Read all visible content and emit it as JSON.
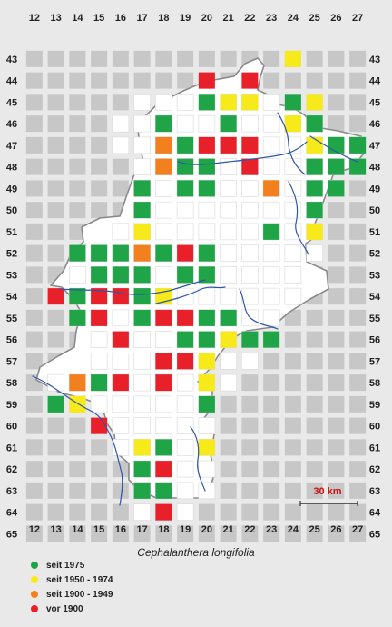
{
  "map": {
    "species": "Cephalanthera longifolia",
    "x_ticks": [
      "12",
      "13",
      "14",
      "15",
      "16",
      "17",
      "18",
      "19",
      "20",
      "21",
      "22",
      "23",
      "24",
      "25",
      "26",
      "27"
    ],
    "y_ticks": [
      "43",
      "44",
      "45",
      "46",
      "47",
      "48",
      "49",
      "50",
      "51",
      "52",
      "53",
      "54",
      "55",
      "56",
      "57",
      "58",
      "59",
      "60",
      "61",
      "62",
      "63",
      "64",
      "65"
    ],
    "scale": {
      "label": "30 km"
    },
    "colors": {
      "seit_1975": "#1fa548",
      "seit_1950_1974": "#f7ea1b",
      "seit_1900_1949": "#f3801f",
      "vor_1900": "#e8202a",
      "background": "#e9e9e9",
      "land": "#ffffff",
      "cell_out": "#c7c7c7",
      "river": "#2f56a6"
    },
    "region": [
      [
        "17",
        45
      ],
      [
        "18",
        45
      ],
      [
        "19",
        45
      ],
      [
        "20",
        45
      ],
      [
        "21",
        45
      ],
      [
        "22",
        45
      ],
      [
        "23",
        45
      ],
      [
        "24",
        45
      ],
      [
        "25",
        45
      ],
      [
        "16",
        46
      ],
      [
        "17",
        46
      ],
      [
        "18",
        46
      ],
      [
        "19",
        46
      ],
      [
        "20",
        46
      ],
      [
        "21",
        46
      ],
      [
        "22",
        46
      ],
      [
        "23",
        46
      ],
      [
        "24",
        46
      ],
      [
        "25",
        46
      ],
      [
        "16",
        47
      ],
      [
        "17",
        47
      ],
      [
        "18",
        47
      ],
      [
        "19",
        47
      ],
      [
        "20",
        47
      ],
      [
        "21",
        47
      ],
      [
        "22",
        47
      ],
      [
        "23",
        47
      ],
      [
        "24",
        47
      ],
      [
        "25",
        47
      ],
      [
        "26",
        47
      ],
      [
        "27",
        47
      ],
      [
        "17",
        48
      ],
      [
        "18",
        48
      ],
      [
        "19",
        48
      ],
      [
        "20",
        48
      ],
      [
        "21",
        48
      ],
      [
        "22",
        48
      ],
      [
        "23",
        48
      ],
      [
        "24",
        48
      ],
      [
        "25",
        48
      ],
      [
        "26",
        48
      ],
      [
        "27",
        48
      ],
      [
        "17",
        49
      ],
      [
        "18",
        49
      ],
      [
        "19",
        49
      ],
      [
        "20",
        49
      ],
      [
        "21",
        49
      ],
      [
        "22",
        49
      ],
      [
        "23",
        49
      ],
      [
        "24",
        49
      ],
      [
        "25",
        49
      ],
      [
        "26",
        49
      ],
      [
        "17",
        50
      ],
      [
        "18",
        50
      ],
      [
        "19",
        50
      ],
      [
        "20",
        50
      ],
      [
        "21",
        50
      ],
      [
        "22",
        50
      ],
      [
        "23",
        50
      ],
      [
        "24",
        50
      ],
      [
        "25",
        50
      ],
      [
        "16",
        51
      ],
      [
        "17",
        51
      ],
      [
        "18",
        51
      ],
      [
        "19",
        51
      ],
      [
        "20",
        51
      ],
      [
        "21",
        51
      ],
      [
        "22",
        51
      ],
      [
        "23",
        51
      ],
      [
        "24",
        51
      ],
      [
        "25",
        51
      ],
      [
        "14",
        52
      ],
      [
        "15",
        52
      ],
      [
        "16",
        52
      ],
      [
        "17",
        52
      ],
      [
        "18",
        52
      ],
      [
        "19",
        52
      ],
      [
        "20",
        52
      ],
      [
        "21",
        52
      ],
      [
        "22",
        52
      ],
      [
        "23",
        52
      ],
      [
        "24",
        52
      ],
      [
        "25",
        52
      ],
      [
        "14",
        53
      ],
      [
        "15",
        53
      ],
      [
        "16",
        53
      ],
      [
        "17",
        53
      ],
      [
        "18",
        53
      ],
      [
        "19",
        53
      ],
      [
        "20",
        53
      ],
      [
        "21",
        53
      ],
      [
        "22",
        53
      ],
      [
        "23",
        53
      ],
      [
        "24",
        53
      ],
      [
        "13",
        54
      ],
      [
        "14",
        54
      ],
      [
        "15",
        54
      ],
      [
        "16",
        54
      ],
      [
        "17",
        54
      ],
      [
        "18",
        54
      ],
      [
        "19",
        54
      ],
      [
        "20",
        54
      ],
      [
        "21",
        54
      ],
      [
        "22",
        54
      ],
      [
        "23",
        54
      ],
      [
        "24",
        54
      ],
      [
        "14",
        55
      ],
      [
        "15",
        55
      ],
      [
        "16",
        55
      ],
      [
        "17",
        55
      ],
      [
        "18",
        55
      ],
      [
        "19",
        55
      ],
      [
        "20",
        55
      ],
      [
        "21",
        55
      ],
      [
        "22",
        55
      ],
      [
        "23",
        55
      ],
      [
        "15",
        56
      ],
      [
        "16",
        56
      ],
      [
        "17",
        56
      ],
      [
        "18",
        56
      ],
      [
        "19",
        56
      ],
      [
        "20",
        56
      ],
      [
        "21",
        56
      ],
      [
        "22",
        56
      ],
      [
        "23",
        56
      ],
      [
        "15",
        57
      ],
      [
        "16",
        57
      ],
      [
        "17",
        57
      ],
      [
        "18",
        57
      ],
      [
        "19",
        57
      ],
      [
        "20",
        57
      ],
      [
        "21",
        57
      ],
      [
        "22",
        57
      ],
      [
        "13",
        58
      ],
      [
        "14",
        58
      ],
      [
        "15",
        58
      ],
      [
        "16",
        58
      ],
      [
        "17",
        58
      ],
      [
        "18",
        58
      ],
      [
        "19",
        58
      ],
      [
        "20",
        58
      ],
      [
        "21",
        58
      ],
      [
        "13",
        59
      ],
      [
        "14",
        59
      ],
      [
        "15",
        59
      ],
      [
        "16",
        59
      ],
      [
        "17",
        59
      ],
      [
        "18",
        59
      ],
      [
        "19",
        59
      ],
      [
        "20",
        59
      ],
      [
        "15",
        60
      ],
      [
        "16",
        60
      ],
      [
        "17",
        60
      ],
      [
        "18",
        60
      ],
      [
        "19",
        60
      ],
      [
        "20",
        60
      ],
      [
        "16",
        61
      ],
      [
        "17",
        61
      ],
      [
        "18",
        61
      ],
      [
        "19",
        61
      ],
      [
        "20",
        61
      ],
      [
        "17",
        62
      ],
      [
        "18",
        62
      ],
      [
        "19",
        62
      ],
      [
        "20",
        62
      ],
      [
        "17",
        63
      ],
      [
        "18",
        63
      ],
      [
        "19",
        63
      ],
      [
        "20",
        63
      ],
      [
        "17",
        64
      ],
      [
        "18",
        64
      ],
      [
        "19",
        64
      ]
    ],
    "records": [
      [
        "24",
        43,
        "seit_1950_1974"
      ],
      [
        "20",
        44,
        "vor_1900"
      ],
      [
        "22",
        44,
        "vor_1900"
      ],
      [
        "20",
        45,
        "seit_1975"
      ],
      [
        "21",
        45,
        "seit_1950_1974"
      ],
      [
        "22",
        45,
        "seit_1950_1974"
      ],
      [
        "24",
        45,
        "seit_1975"
      ],
      [
        "25",
        45,
        "seit_1950_1974"
      ],
      [
        "18",
        46,
        "seit_1975"
      ],
      [
        "21",
        46,
        "seit_1975"
      ],
      [
        "24",
        46,
        "seit_1950_1974"
      ],
      [
        "25",
        46,
        "seit_1975"
      ],
      [
        "18",
        47,
        "seit_1900_1949"
      ],
      [
        "19",
        47,
        "seit_1975"
      ],
      [
        "20",
        47,
        "vor_1900"
      ],
      [
        "21",
        47,
        "vor_1900"
      ],
      [
        "22",
        47,
        "vor_1900"
      ],
      [
        "25",
        47,
        "seit_1950_1974"
      ],
      [
        "26",
        47,
        "seit_1975"
      ],
      [
        "27",
        47,
        "seit_1975"
      ],
      [
        "18",
        48,
        "seit_1900_1949"
      ],
      [
        "19",
        48,
        "seit_1975"
      ],
      [
        "20",
        48,
        "seit_1975"
      ],
      [
        "22",
        48,
        "vor_1900"
      ],
      [
        "25",
        48,
        "seit_1975"
      ],
      [
        "26",
        48,
        "seit_1975"
      ],
      [
        "27",
        48,
        "seit_1975"
      ],
      [
        "17",
        49,
        "seit_1975"
      ],
      [
        "19",
        49,
        "seit_1975"
      ],
      [
        "20",
        49,
        "seit_1975"
      ],
      [
        "23",
        49,
        "seit_1900_1949"
      ],
      [
        "25",
        49,
        "seit_1975"
      ],
      [
        "26",
        49,
        "seit_1975"
      ],
      [
        "17",
        50,
        "seit_1975"
      ],
      [
        "25",
        50,
        "seit_1975"
      ],
      [
        "17",
        51,
        "seit_1950_1974"
      ],
      [
        "23",
        51,
        "seit_1975"
      ],
      [
        "25",
        51,
        "seit_1950_1974"
      ],
      [
        "14",
        52,
        "seit_1975"
      ],
      [
        "15",
        52,
        "seit_1975"
      ],
      [
        "16",
        52,
        "seit_1975"
      ],
      [
        "17",
        52,
        "seit_1900_1949"
      ],
      [
        "18",
        52,
        "seit_1975"
      ],
      [
        "19",
        52,
        "vor_1900"
      ],
      [
        "20",
        52,
        "seit_1975"
      ],
      [
        "15",
        53,
        "seit_1975"
      ],
      [
        "16",
        53,
        "seit_1975"
      ],
      [
        "17",
        53,
        "seit_1975"
      ],
      [
        "19",
        53,
        "seit_1975"
      ],
      [
        "20",
        53,
        "seit_1975"
      ],
      [
        "13",
        54,
        "vor_1900"
      ],
      [
        "14",
        54,
        "seit_1975"
      ],
      [
        "15",
        54,
        "vor_1900"
      ],
      [
        "16",
        54,
        "vor_1900"
      ],
      [
        "17",
        54,
        "seit_1975"
      ],
      [
        "18",
        54,
        "seit_1950_1974"
      ],
      [
        "14",
        55,
        "seit_1975"
      ],
      [
        "15",
        55,
        "vor_1900"
      ],
      [
        "17",
        55,
        "seit_1975"
      ],
      [
        "18",
        55,
        "vor_1900"
      ],
      [
        "19",
        55,
        "vor_1900"
      ],
      [
        "20",
        55,
        "seit_1975"
      ],
      [
        "21",
        55,
        "seit_1975"
      ],
      [
        "16",
        56,
        "vor_1900"
      ],
      [
        "19",
        56,
        "seit_1975"
      ],
      [
        "20",
        56,
        "seit_1975"
      ],
      [
        "21",
        56,
        "seit_1950_1974"
      ],
      [
        "22",
        56,
        "seit_1975"
      ],
      [
        "23",
        56,
        "seit_1975"
      ],
      [
        "18",
        57,
        "vor_1900"
      ],
      [
        "19",
        57,
        "vor_1900"
      ],
      [
        "20",
        57,
        "seit_1950_1974"
      ],
      [
        "14",
        58,
        "seit_1900_1949"
      ],
      [
        "15",
        58,
        "seit_1975"
      ],
      [
        "16",
        58,
        "vor_1900"
      ],
      [
        "18",
        58,
        "vor_1900"
      ],
      [
        "20",
        58,
        "seit_1950_1974"
      ],
      [
        "13",
        59,
        "seit_1975"
      ],
      [
        "14",
        59,
        "seit_1950_1974"
      ],
      [
        "20",
        59,
        "seit_1975"
      ],
      [
        "15",
        60,
        "vor_1900"
      ],
      [
        "17",
        61,
        "seit_1950_1974"
      ],
      [
        "18",
        61,
        "seit_1975"
      ],
      [
        "20",
        61,
        "seit_1950_1974"
      ],
      [
        "17",
        62,
        "seit_1975"
      ],
      [
        "18",
        62,
        "vor_1900"
      ],
      [
        "17",
        63,
        "seit_1975"
      ],
      [
        "18",
        63,
        "seit_1975"
      ],
      [
        "18",
        64,
        "vor_1900"
      ]
    ]
  },
  "legend": {
    "items": [
      {
        "key": "seit_1975",
        "label": "seit 1975"
      },
      {
        "key": "seit_1950_1974",
        "label": "seit 1950 - 1974"
      },
      {
        "key": "seit_1900_1949",
        "label": "seit 1900 - 1949"
      },
      {
        "key": "vor_1900",
        "label": "vor 1900"
      }
    ]
  }
}
